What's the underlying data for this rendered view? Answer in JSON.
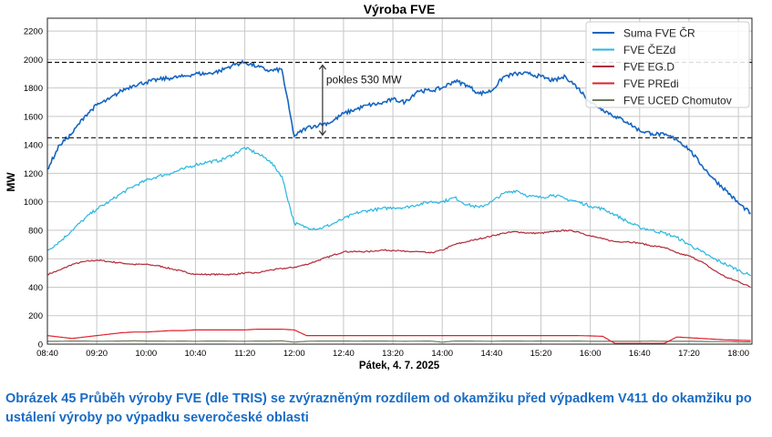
{
  "chart_data": {
    "type": "line",
    "title": "Výroba FVE",
    "xlabel": "Pátek, 4. 7. 2025",
    "ylabel": "MW",
    "xlim": [
      "08:40",
      "18:11"
    ],
    "ylim": [
      0,
      2290
    ],
    "grid": true,
    "legend_position": "top-right",
    "xticks": [
      "08:40",
      "09:20",
      "10:00",
      "10:40",
      "11:20",
      "12:00",
      "12:40",
      "13:20",
      "14:00",
      "14:40",
      "15:20",
      "16:00",
      "16:40",
      "17:20",
      "18:00"
    ],
    "yticks": [
      0,
      200,
      400,
      600,
      800,
      1000,
      1200,
      1400,
      1600,
      1800,
      2000,
      2200
    ],
    "x": [
      "08:40",
      "08:50",
      "09:00",
      "09:10",
      "09:20",
      "09:30",
      "09:40",
      "09:50",
      "10:00",
      "10:10",
      "10:20",
      "10:30",
      "10:40",
      "10:50",
      "11:00",
      "11:10",
      "11:20",
      "11:30",
      "11:40",
      "11:50",
      "12:00",
      "12:10",
      "12:20",
      "12:30",
      "12:40",
      "12:50",
      "13:00",
      "13:10",
      "13:20",
      "13:30",
      "13:40",
      "13:50",
      "14:00",
      "14:10",
      "14:20",
      "14:30",
      "14:40",
      "14:50",
      "15:00",
      "15:10",
      "15:20",
      "15:30",
      "15:40",
      "15:50",
      "16:00",
      "16:10",
      "16:20",
      "16:30",
      "16:40",
      "16:50",
      "17:00",
      "17:10",
      "17:20",
      "17:30",
      "17:40",
      "17:50",
      "18:00",
      "18:10"
    ],
    "series": [
      {
        "name": "Suma FVE ČR",
        "color": "#1565c0",
        "values": [
          1230,
          1400,
          1480,
          1600,
          1680,
          1720,
          1780,
          1820,
          1840,
          1860,
          1870,
          1880,
          1900,
          1900,
          1920,
          1960,
          1980,
          1950,
          1920,
          1930,
          1460,
          1520,
          1540,
          1560,
          1620,
          1650,
          1680,
          1690,
          1720,
          1700,
          1780,
          1780,
          1800,
          1850,
          1820,
          1760,
          1780,
          1880,
          1900,
          1900,
          1880,
          1850,
          1880,
          1800,
          1700,
          1650,
          1600,
          1560,
          1500,
          1480,
          1470,
          1440,
          1370,
          1260,
          1160,
          1080,
          990,
          920
        ]
      },
      {
        "name": "FVE ČEZd",
        "color": "#29b6e0",
        "values": [
          660,
          720,
          800,
          880,
          950,
          1000,
          1060,
          1110,
          1150,
          1180,
          1200,
          1230,
          1260,
          1280,
          1290,
          1330,
          1380,
          1340,
          1290,
          1180,
          850,
          820,
          810,
          840,
          880,
          920,
          940,
          950,
          960,
          960,
          980,
          1000,
          1000,
          1030,
          980,
          960,
          1000,
          1060,
          1080,
          1040,
          1030,
          1050,
          1020,
          1000,
          970,
          950,
          910,
          860,
          820,
          800,
          780,
          750,
          700,
          650,
          600,
          560,
          520,
          480
        ]
      },
      {
        "name": "FVE EG.D",
        "color": "#b22a3a",
        "values": [
          490,
          520,
          560,
          580,
          590,
          580,
          570,
          560,
          560,
          550,
          530,
          510,
          490,
          490,
          490,
          490,
          500,
          500,
          520,
          530,
          540,
          560,
          590,
          620,
          650,
          650,
          650,
          660,
          660,
          650,
          650,
          640,
          660,
          700,
          720,
          740,
          760,
          780,
          790,
          780,
          780,
          790,
          800,
          790,
          760,
          740,
          720,
          720,
          710,
          690,
          680,
          640,
          620,
          580,
          520,
          470,
          440,
          400
        ]
      },
      {
        "name": "FVE PREdi",
        "color": "#e0202c",
        "values": [
          60,
          50,
          40,
          50,
          60,
          70,
          80,
          85,
          85,
          90,
          95,
          95,
          100,
          100,
          100,
          100,
          100,
          105,
          105,
          105,
          100,
          60,
          60,
          60,
          60,
          60,
          60,
          60,
          60,
          60,
          60,
          60,
          60,
          60,
          60,
          60,
          60,
          60,
          60,
          60,
          60,
          60,
          60,
          60,
          58,
          55,
          5,
          5,
          5,
          5,
          5,
          50,
          45,
          40,
          35,
          30,
          28,
          25
        ]
      },
      {
        "name": "FVE UCED Chomutov",
        "color": "#6b7a5c",
        "values": [
          20,
          20,
          22,
          22,
          20,
          21,
          22,
          23,
          22,
          22,
          21,
          22,
          20,
          22,
          22,
          21,
          20,
          22,
          22,
          23,
          14,
          20,
          22,
          22,
          22,
          21,
          22,
          22,
          21,
          20,
          21,
          22,
          14,
          22,
          22,
          21,
          20,
          22,
          22,
          21,
          22,
          22,
          21,
          22,
          20,
          20,
          20,
          20,
          20,
          21,
          20,
          20,
          20,
          19,
          18,
          18,
          16,
          15
        ]
      }
    ],
    "reference_lines": [
      1980,
      1450
    ],
    "annotation": {
      "text": "pokles 530 MW",
      "at": "12:23",
      "from": 1980,
      "to": 1450
    }
  },
  "caption": "Obrázek 45 Průběh výroby FVE (dle TRIS) se zvýrazněným rozdílem od okamžiku před výpadkem V411 do okamžiku po ustálení výroby po výpadku severočeské oblasti"
}
